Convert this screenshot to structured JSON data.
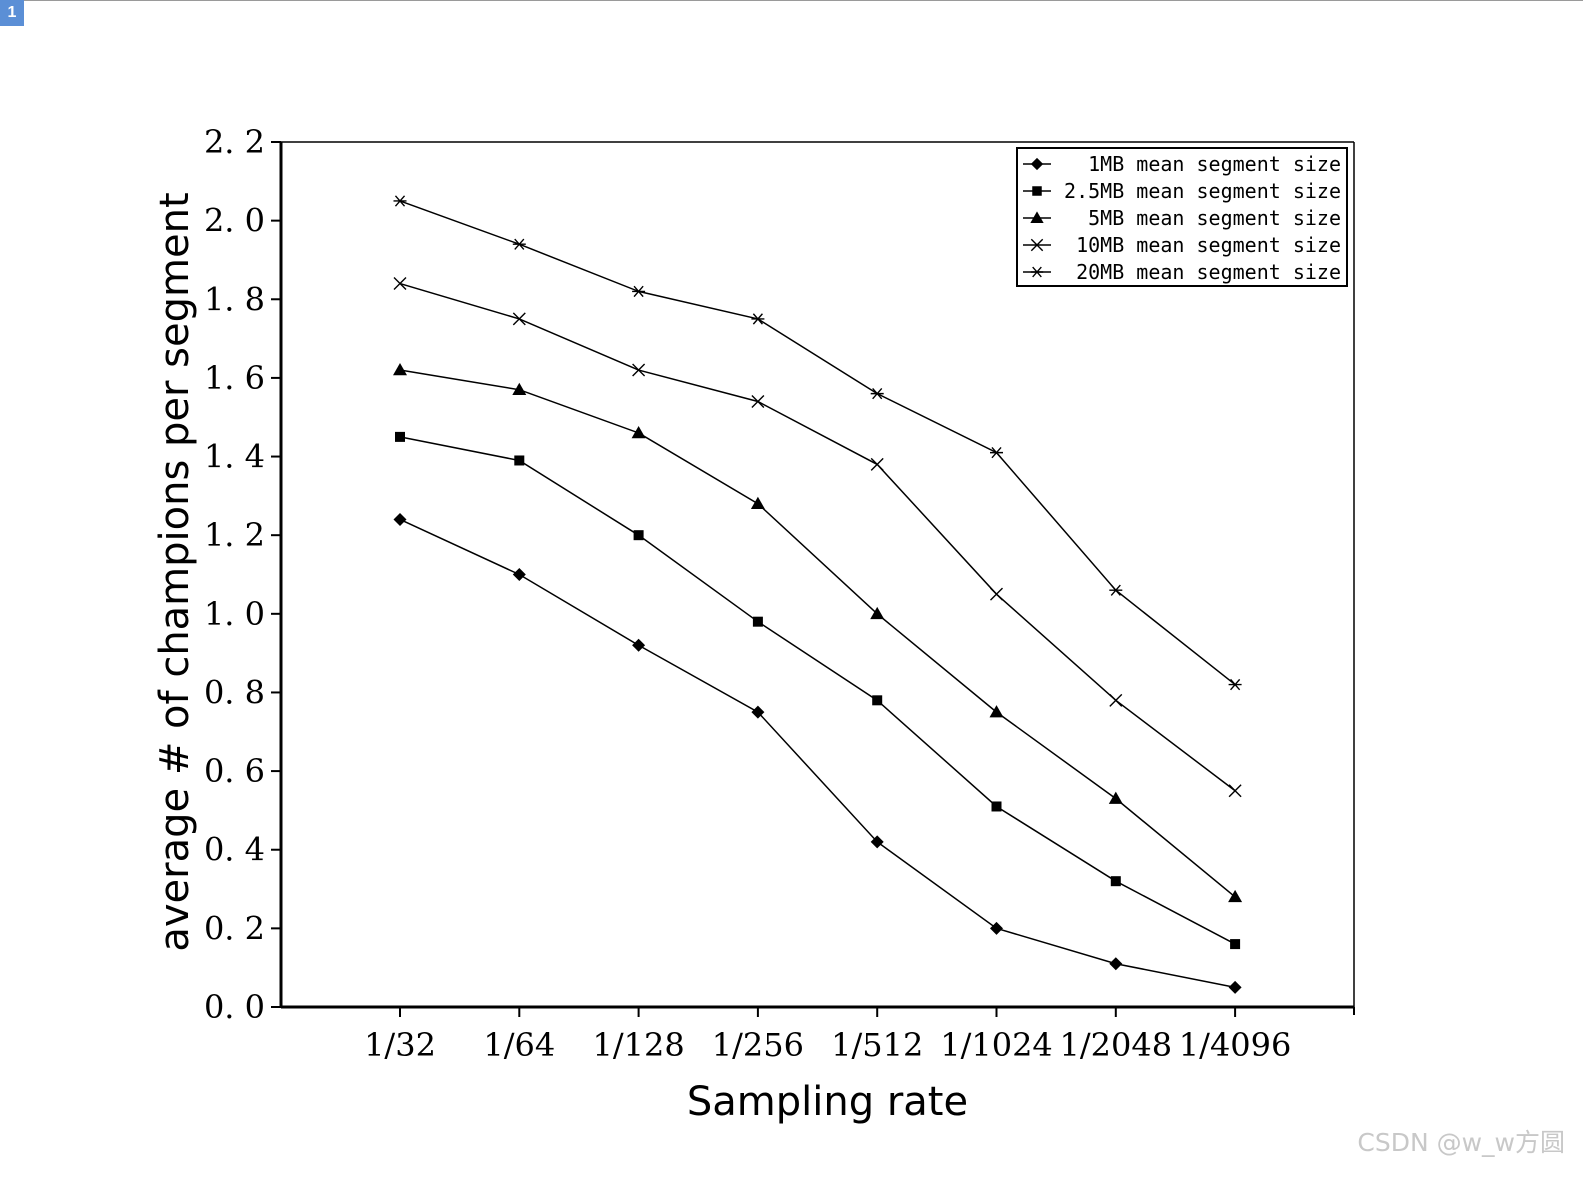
{
  "page_badge": "1",
  "watermark": "CSDN @w_w方圆",
  "chart_data": {
    "type": "line",
    "title": "",
    "xlabel": "Sampling rate",
    "ylabel": "average # of champions per segment",
    "categories": [
      "1/32",
      "1/64",
      "1/128",
      "1/256",
      "1/512",
      "1/1024",
      "1/2048",
      "1/4096"
    ],
    "ylim": [
      0.0,
      2.2
    ],
    "yticks": [
      "0. 0",
      "0. 2",
      "0. 4",
      "0. 6",
      "0. 8",
      "1. 0",
      "1. 2",
      "1. 4",
      "1. 6",
      "1. 8",
      "2. 0",
      "2. 2"
    ],
    "grid": false,
    "legend_position": "top-right",
    "line_color": "#000000",
    "series": [
      {
        "name": "1MB mean segment size",
        "marker": "diamond",
        "values": [
          1.24,
          1.1,
          0.92,
          0.75,
          0.42,
          0.2,
          0.11,
          0.05
        ]
      },
      {
        "name": "2.5MB mean segment size",
        "marker": "square",
        "values": [
          1.45,
          1.39,
          1.2,
          0.98,
          0.78,
          0.51,
          0.32,
          0.16
        ]
      },
      {
        "name": "5MB mean segment size",
        "marker": "triangle",
        "values": [
          1.62,
          1.57,
          1.46,
          1.28,
          1.0,
          0.75,
          0.53,
          0.28
        ]
      },
      {
        "name": "10MB mean segment size",
        "marker": "x",
        "values": [
          1.84,
          1.75,
          1.62,
          1.54,
          1.38,
          1.05,
          0.78,
          0.55
        ]
      },
      {
        "name": "20MB mean segment size",
        "marker": "asterisk",
        "values": [
          2.05,
          1.94,
          1.82,
          1.75,
          1.56,
          1.41,
          1.06,
          0.82
        ]
      }
    ]
  }
}
